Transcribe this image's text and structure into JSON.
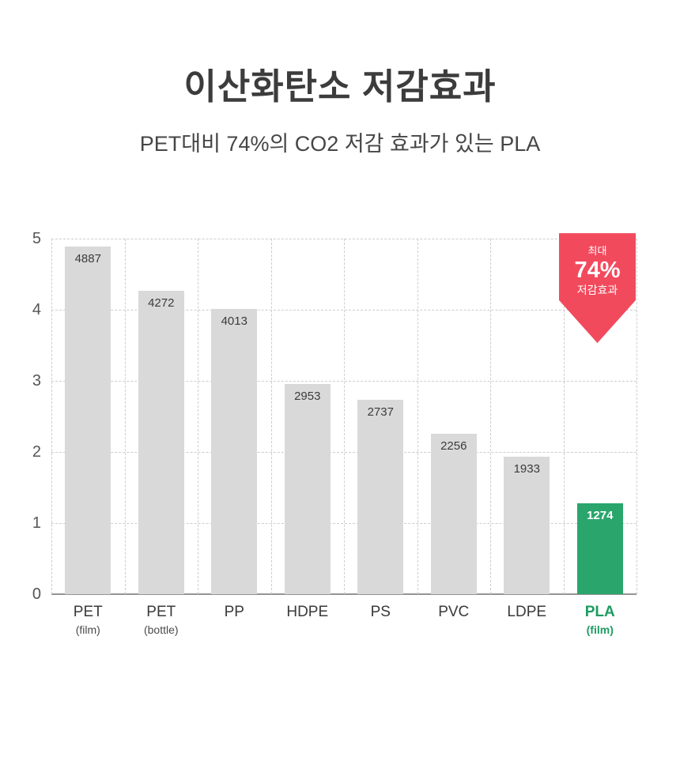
{
  "header": {
    "title": "이산화탄소 저감효과",
    "subtitle": "PET대비 74%의  CO2 저감 효과가 있는 PLA"
  },
  "badge": {
    "line1": "최대",
    "line2": "74%",
    "line3": "저감효과",
    "color": "#f24a5d"
  },
  "chart_data": {
    "type": "bar",
    "title": "이산화탄소 저감효과",
    "subtitle": "PET대비 74%의  CO2 저감 효과가 있는 PLA",
    "categories": [
      "PET",
      "PET",
      "PP",
      "HDPE",
      "PS",
      "PVC",
      "LDPE",
      "PLA"
    ],
    "sublabels": [
      "(film)",
      "(bottle)",
      "",
      "",
      "",
      "",
      "",
      "(film)"
    ],
    "values": [
      4887,
      4272,
      4013,
      2953,
      2737,
      2256,
      1933,
      1274
    ],
    "plotted_values": [
      4.887,
      4.272,
      4.013,
      2.953,
      2.737,
      2.256,
      1.933,
      1.274
    ],
    "yticks": [
      0,
      1,
      2,
      3,
      4,
      5
    ],
    "ylim": [
      0,
      5
    ],
    "grid": "dashed",
    "legend": "none",
    "bar_color": "#d9d9d9",
    "highlight_index": 7,
    "highlight_color": "#2aa56c",
    "value_label_color": "#3b3b3b",
    "highlight_value_label_color": "#ffffff",
    "highlight_tick_color": "#1d9b62",
    "annotation": {
      "text": "최대 74% 저감효과",
      "shape": "down-arrow",
      "color": "#f24a5d"
    }
  }
}
